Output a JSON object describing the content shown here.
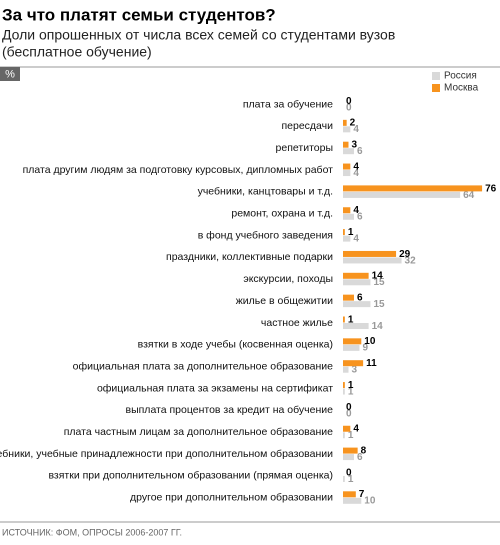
{
  "chart_data": {
    "type": "grouped-hbar",
    "title": "За что платят семьи студентов?",
    "subtitle": [
      "Доли опрошенных от числа всех семей со студентами вузов",
      "(бесплатное обучение)"
    ],
    "unit": "%",
    "source": "ИСТОЧНИК: ФОМ, ОПРОСЫ 2006-2007 ГГ.",
    "legend": "top-right",
    "categories": [
      "плата за обучение",
      "пересдачи",
      "репетиторы",
      "плата другим людям за подготовку курсовых, дипломных работ",
      "учебники, канцтовары и т.д.",
      "ремонт, охрана и т.д.",
      "в фонд учебного заведения",
      "праздники, коллективные подарки",
      "экскурсии, походы",
      "жилье в общежитии",
      "частное жилье",
      "взятки в ходе учебы (косвенная оценка)",
      "официальная плата за дополнительное образование",
      "официальная плата за экзамены на сертификат",
      "выплата процентов за кредит на обучение",
      "плата частным лицам за дополнительное образование",
      "учебники, учебные принадлежности при дополнительном образовании",
      "взятки при дополнительном образовании (прямая оценка)",
      "другое при дополнительном образовании"
    ],
    "series": [
      {
        "name": "Россия",
        "color": "#d9d9d9",
        "label_color": "#999999",
        "values": [
          0,
          4,
          6,
          4,
          64,
          6,
          4,
          32,
          15,
          15,
          14,
          9,
          3,
          1,
          0,
          1,
          6,
          1,
          10
        ]
      },
      {
        "name": "Москва",
        "color": "#f7931e",
        "label_color": "#000000",
        "values": [
          0,
          2,
          3,
          4,
          76,
          4,
          1,
          29,
          14,
          6,
          1,
          10,
          11,
          1,
          0,
          4,
          8,
          0,
          7
        ]
      }
    ]
  }
}
